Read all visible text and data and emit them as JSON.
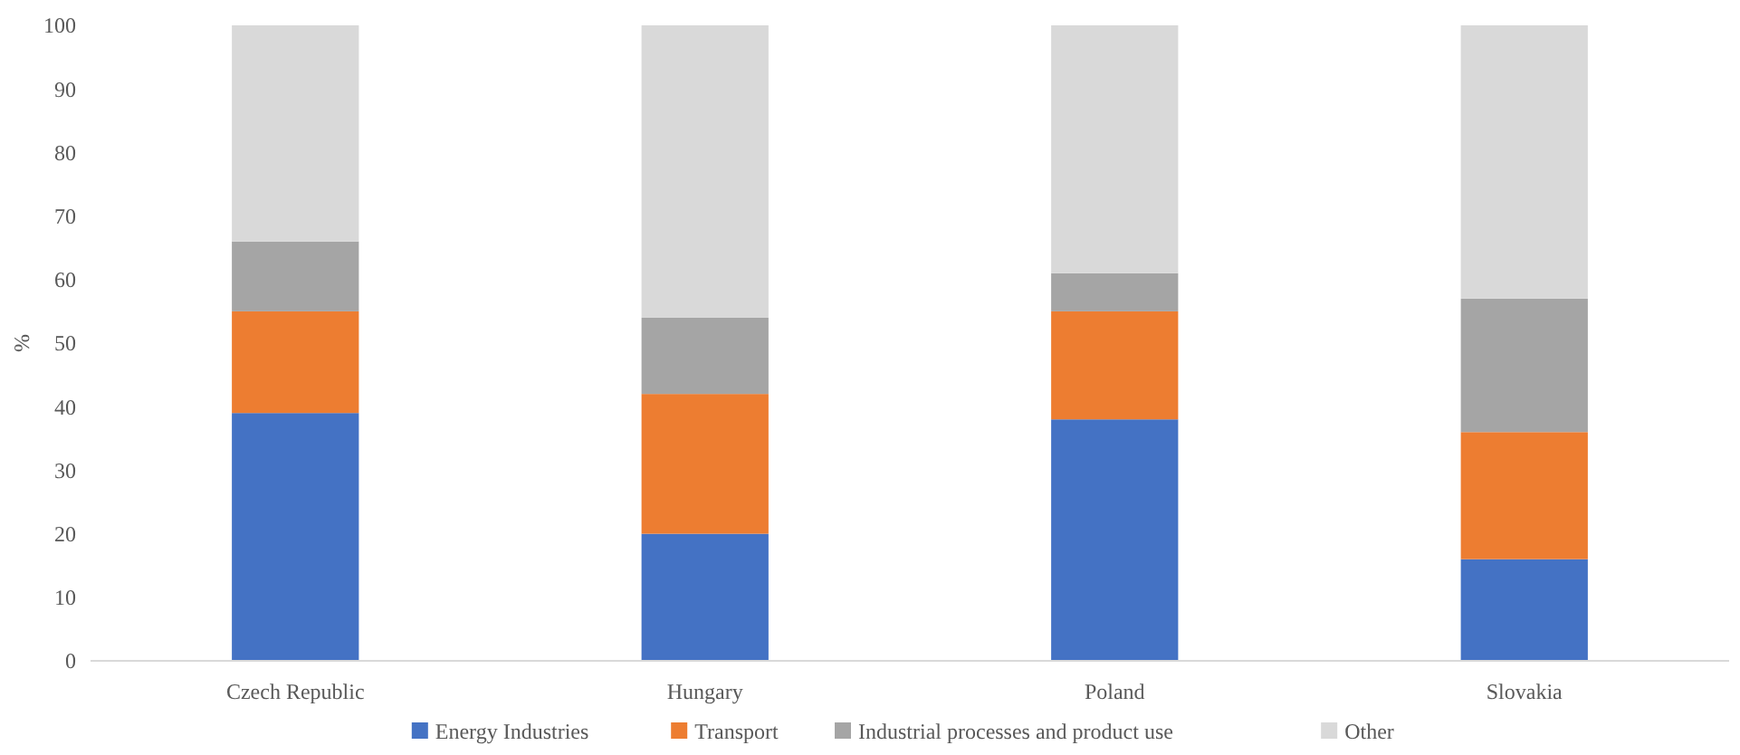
{
  "chart_data": {
    "type": "bar",
    "stacked": true,
    "ylabel": "%",
    "categories": [
      "Czech Republic",
      "Hungary",
      "Poland",
      "Slovakia"
    ],
    "series": [
      {
        "name": "Energy Industries",
        "color": "#4472c4",
        "values": [
          39,
          20,
          38,
          16
        ]
      },
      {
        "name": "Transport",
        "color": "#ed7d31",
        "values": [
          16,
          22,
          17,
          20
        ]
      },
      {
        "name": "Industrial processes and product use",
        "color": "#a5a5a5",
        "values": [
          11,
          12,
          6,
          21
        ]
      },
      {
        "name": "Other",
        "color": "#d9d9d9",
        "values": [
          34,
          46,
          39,
          43
        ]
      }
    ],
    "ylim": [
      0,
      100
    ],
    "yticks": [
      0,
      10,
      20,
      30,
      40,
      50,
      60,
      70,
      80,
      90,
      100
    ],
    "grid": false,
    "legend": "bottom"
  }
}
